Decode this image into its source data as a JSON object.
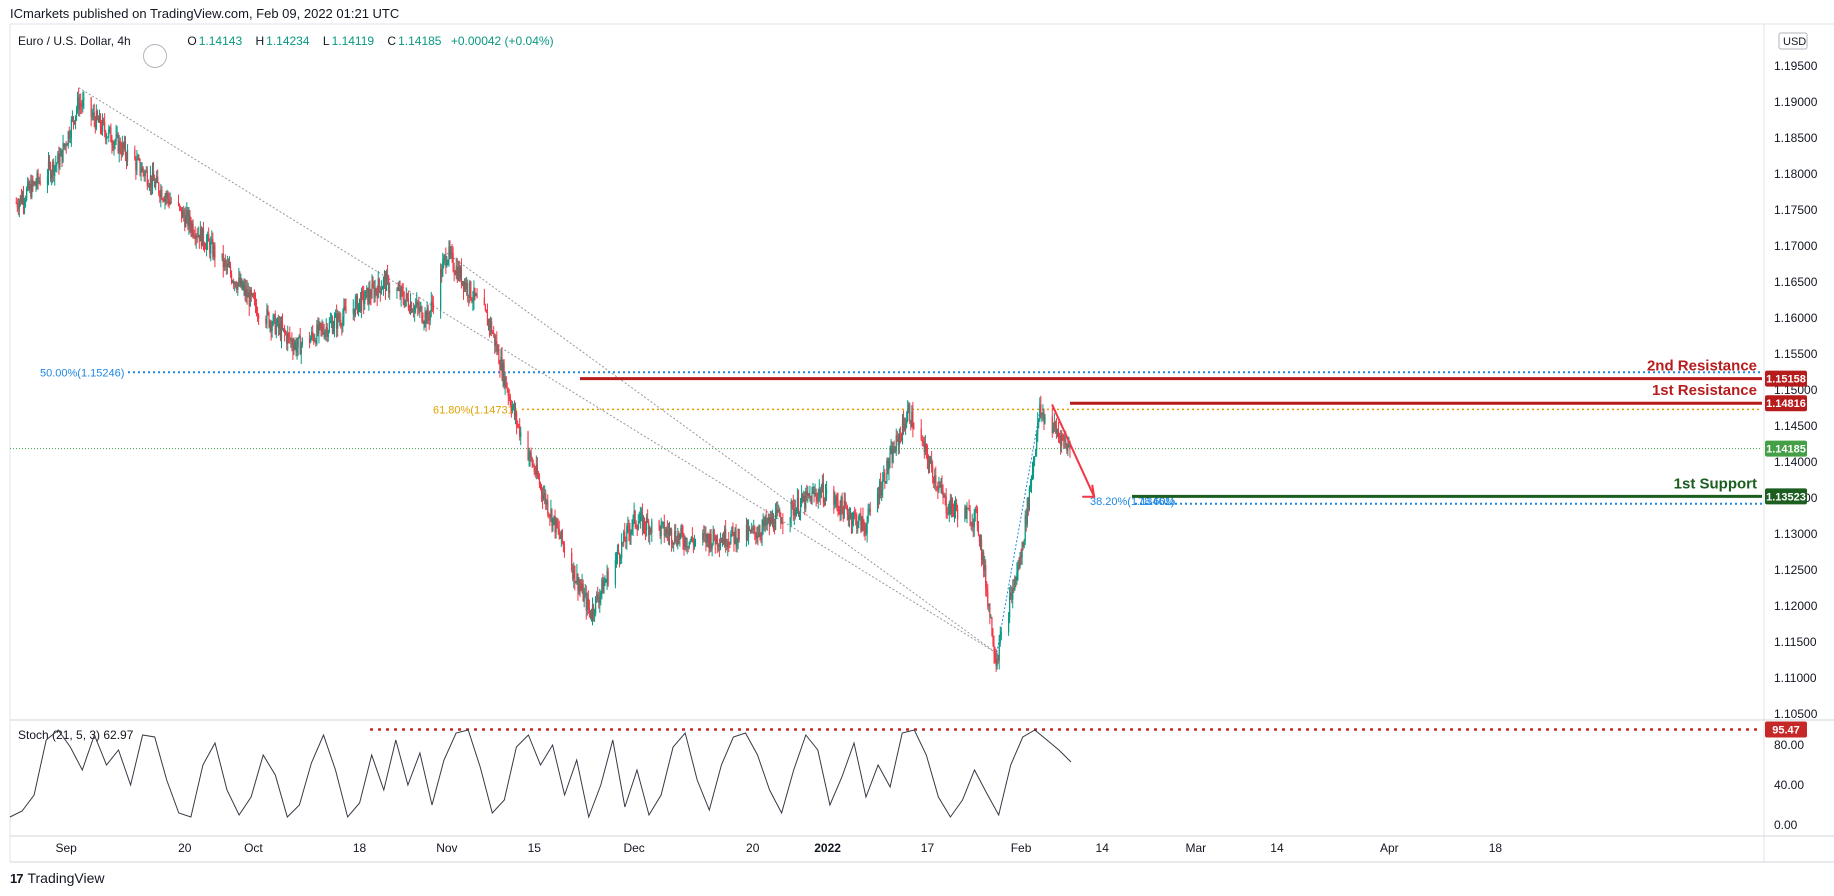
{
  "header": {
    "publisher_text": "ICmarkets published on TradingView.com, Feb 09, 2022 01:21 UTC"
  },
  "legend": {
    "symbol": "Euro / U.S. Dollar, 4h",
    "open_label": "O",
    "open_value": "1.14143",
    "high_label": "H",
    "high_value": "1.14234",
    "low_label": "L",
    "low_value": "1.14119",
    "close_label": "C",
    "close_value": "1.14185",
    "change": "+0.00042 (+0.04%)"
  },
  "stoch_legend": "Stoch (21, 5, 3)  62.97",
  "footer": {
    "brand_icon": "17",
    "brand_name": "TradingView"
  },
  "colors": {
    "up": "#089981",
    "down": "#f23645",
    "resistance": "#b71c1c",
    "support": "#1b5e20",
    "fib_blue": "#1e88e5",
    "fib_orange": "#e0a100",
    "current_price": "#43a047",
    "stoch_level": "#c62828"
  },
  "chart_data": [
    {
      "type": "candlestick",
      "title": "Euro / U.S. Dollar, 4h",
      "currency_label": "USD",
      "ylim": [
        1.1,
        1.2
      ],
      "y_ticks": [
        "1.10500",
        "1.11000",
        "1.11500",
        "1.12000",
        "1.12500",
        "1.13000",
        "1.13500",
        "1.14000",
        "1.14500",
        "1.15000",
        "1.15500",
        "1.16000",
        "1.16500",
        "1.17000",
        "1.17500",
        "1.18000",
        "1.18500",
        "1.19000",
        "1.19500"
      ],
      "x_ticks": [
        "Sep",
        "20",
        "Oct",
        "18",
        "Nov",
        "15",
        "Dec",
        "20",
        "2022",
        "17",
        "Feb",
        "14",
        "Mar",
        "14",
        "Apr",
        "18"
      ],
      "path": [
        [
          "Aug 24",
          1.176
        ],
        [
          "Aug 31",
          1.182
        ],
        [
          "Sep 3",
          1.19
        ],
        [
          "Sep 10",
          1.1835
        ],
        [
          "Sep 17",
          1.177
        ],
        [
          "Sep 24",
          1.17
        ],
        [
          "Oct 1",
          1.162
        ],
        [
          "Oct 8",
          1.156
        ],
        [
          "Oct 15",
          1.16
        ],
        [
          "Oct 22",
          1.165
        ],
        [
          "Oct 29",
          1.16
        ],
        [
          "Nov 1",
          1.169
        ],
        [
          "Nov 8",
          1.159
        ],
        [
          "Nov 12",
          1.146
        ],
        [
          "Nov 18",
          1.132
        ],
        [
          "Nov 24",
          1.119
        ],
        [
          "Dec 1",
          1.132
        ],
        [
          "Dec 10",
          1.129
        ],
        [
          "Dec 20",
          1.13
        ],
        [
          "Dec 31",
          1.136
        ],
        [
          "Jan 7",
          1.131
        ],
        [
          "Jan 14",
          1.147
        ],
        [
          "Jan 20",
          1.134
        ],
        [
          "Jan 25",
          1.132
        ],
        [
          "Jan 28",
          1.1125
        ],
        [
          "Feb 1",
          1.127
        ],
        [
          "Feb 4",
          1.147
        ],
        [
          "Feb 9",
          1.14185
        ]
      ],
      "last_close": 1.14185,
      "trendlines": [
        {
          "from": [
            "Sep 3",
            1.192
          ],
          "to": [
            "Jan 28",
            1.1135
          ]
        },
        {
          "from": [
            "Nov 1",
            1.169
          ],
          "to": [
            "Jan 28",
            1.1135
          ]
        }
      ],
      "levels": [
        {
          "name": "2nd Resistance",
          "value": 1.15158,
          "label": "1.15158",
          "color": "#b71c1c"
        },
        {
          "name": "1st Resistance",
          "value": 1.14816,
          "label": "1.14816",
          "color": "#b71c1c"
        },
        {
          "name": "1st Support",
          "value": 1.13523,
          "label": "1.13523",
          "color": "#1b5e20"
        }
      ],
      "fib_levels": [
        {
          "label": "50.00%(1.15246)",
          "value": 1.15246,
          "color": "#1e88e5"
        },
        {
          "label": "61.80%(1.14731)",
          "value": 1.14731,
          "color": "#e0a100"
        },
        {
          "label": "38.20%(1.13461)",
          "value": 1.13461,
          "color": "#1e88e5"
        },
        {
          "label": "78.60%",
          "value": 1.13461,
          "color": "#1e88e5"
        }
      ],
      "current_price_label": "1.14185",
      "annotation_arrow": {
        "from": [
          "Feb 5",
          1.148
        ],
        "to": [
          "Feb 14",
          1.136
        ]
      }
    },
    {
      "type": "line",
      "title": "Stoch (21, 5, 3)",
      "last_value": 62.97,
      "ylim": [
        0,
        100
      ],
      "y_ticks": [
        "0.00",
        "40.00",
        "80.00"
      ],
      "level": {
        "value": 95.47,
        "label": "95.47"
      },
      "series": [
        {
          "values": [
            8,
            14,
            30,
            85,
            95,
            78,
            55,
            90,
            60,
            75,
            40,
            90,
            88,
            45,
            12,
            8,
            60,
            82,
            35,
            10,
            28,
            70,
            50,
            8,
            20,
            62,
            90,
            55,
            8,
            22,
            70,
            35,
            85,
            40,
            72,
            20,
            65,
            92,
            95,
            58,
            12,
            25,
            78,
            90,
            60,
            80,
            30,
            65,
            8,
            40,
            85,
            18,
            55,
            10,
            30,
            78,
            92,
            45,
            15,
            60,
            88,
            92,
            70,
            35,
            12,
            55,
            90,
            75,
            20,
            48,
            82,
            28,
            60,
            38,
            92,
            95,
            70,
            28,
            8,
            25,
            55,
            32,
            10,
            60,
            88,
            95,
            85,
            75,
            62.97
          ]
        }
      ]
    }
  ]
}
